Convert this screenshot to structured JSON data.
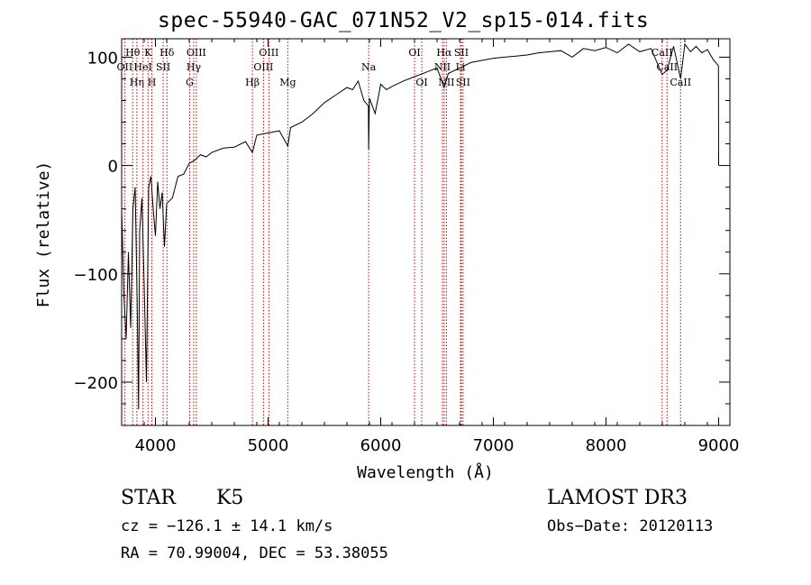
{
  "chart_data": {
    "type": "line",
    "title": "spec-55940-GAC_071N52_V2_sp15-014.fits",
    "xlabel": "Wavelength (Å)",
    "ylabel": "Flux (relative)",
    "xlim": [
      3700,
      9100
    ],
    "ylim": [
      -240,
      117
    ],
    "x_ticks": [
      4000,
      5000,
      6000,
      7000,
      8000,
      9000
    ],
    "y_ticks": [
      -200,
      -100,
      0,
      100
    ],
    "x_tick_labels": [
      "4000",
      "5000",
      "6000",
      "7000",
      "8000",
      "9000"
    ],
    "y_tick_labels": [
      "−200",
      "−100",
      "0",
      "100"
    ],
    "line_color": "#000000",
    "marker_color": "#cc0000",
    "series": [
      {
        "name": "flux",
        "x": [
          3700,
          3720,
          3740,
          3760,
          3780,
          3800,
          3820,
          3840,
          3850,
          3860,
          3880,
          3900,
          3920,
          3940,
          3960,
          3980,
          4000,
          4020,
          4040,
          4060,
          4080,
          4100,
          4150,
          4200,
          4250,
          4300,
          4350,
          4400,
          4450,
          4500,
          4600,
          4700,
          4800,
          4861,
          4900,
          5000,
          5100,
          5175,
          5200,
          5300,
          5400,
          5500,
          5600,
          5700,
          5750,
          5800,
          5850,
          5890,
          5893,
          5900,
          5950,
          6000,
          6050,
          6100,
          6200,
          6300,
          6400,
          6500,
          6563,
          6600,
          6700,
          6800,
          6900,
          7000,
          7100,
          7200,
          7300,
          7400,
          7500,
          7600,
          7700,
          7800,
          7900,
          8000,
          8100,
          8200,
          8300,
          8400,
          8498,
          8542,
          8600,
          8662,
          8700,
          8750,
          8800,
          8850,
          8900,
          8950,
          8998,
          9000
        ],
        "values": [
          -40,
          -120,
          -160,
          -80,
          -150,
          -40,
          -20,
          -140,
          -225,
          -60,
          -30,
          -110,
          -200,
          -20,
          -10,
          -40,
          -65,
          -15,
          -40,
          -25,
          -75,
          -35,
          -30,
          -10,
          -8,
          2,
          5,
          10,
          8,
          12,
          16,
          17,
          22,
          12,
          28,
          30,
          32,
          18,
          35,
          40,
          48,
          58,
          65,
          72,
          70,
          78,
          60,
          55,
          15,
          62,
          48,
          75,
          70,
          73,
          78,
          82,
          86,
          90,
          72,
          85,
          90,
          95,
          97,
          99,
          100,
          101,
          102,
          104,
          105,
          106,
          100,
          108,
          106,
          109,
          104,
          112,
          105,
          108,
          84,
          88,
          110,
          80,
          112,
          105,
          110,
          104,
          107,
          98,
          92,
          0
        ]
      }
    ],
    "line_markers": [
      {
        "name": "OII",
        "wavelength": 3727,
        "row": 2
      },
      {
        "name": "Hθ",
        "wavelength": 3798,
        "row": 1
      },
      {
        "name": "Hη",
        "wavelength": 3835,
        "row": 3
      },
      {
        "name": "HeI",
        "wavelength": 3889,
        "row": 2
      },
      {
        "name": "K",
        "wavelength": 3934,
        "row": 1
      },
      {
        "name": "H",
        "wavelength": 3968,
        "row": 3
      },
      {
        "name": "SII",
        "wavelength": 4069,
        "row": 2
      },
      {
        "name": "Hδ",
        "wavelength": 4102,
        "row": 1
      },
      {
        "name": "G",
        "wavelength": 4304,
        "row": 3
      },
      {
        "name": "Hγ",
        "wavelength": 4340,
        "row": 2
      },
      {
        "name": "OIII",
        "wavelength": 4363,
        "row": 1
      },
      {
        "name": "Hβ",
        "wavelength": 4861,
        "row": 3
      },
      {
        "name": "OIII",
        "wavelength": 4959,
        "row": 2
      },
      {
        "name": "OIII",
        "wavelength": 5007,
        "row": 1
      },
      {
        "name": "Mg",
        "wavelength": 5175,
        "row": 3
      },
      {
        "name": "Na",
        "wavelength": 5893,
        "row": 2
      },
      {
        "name": "OI",
        "wavelength": 6300,
        "row": 1
      },
      {
        "name": "OI",
        "wavelength": 6364,
        "row": 3
      },
      {
        "name": "NII",
        "wavelength": 6548,
        "row": 2
      },
      {
        "name": "Hα",
        "wavelength": 6563,
        "row": 1
      },
      {
        "name": "NII",
        "wavelength": 6583,
        "row": 3
      },
      {
        "name": "SII",
        "wavelength": 6716,
        "row": 1
      },
      {
        "name": "Li",
        "wavelength": 6708,
        "row": 2
      },
      {
        "name": "SII",
        "wavelength": 6731,
        "row": 3
      },
      {
        "name": "CaII",
        "wavelength": 8498,
        "row": 1
      },
      {
        "name": "CaII",
        "wavelength": 8542,
        "row": 2
      },
      {
        "name": "CaII",
        "wavelength": 8662,
        "row": 3
      }
    ]
  },
  "info": {
    "object_class": "STAR",
    "subclass": "K5",
    "survey": "LAMOST DR3",
    "cz": "cz = −126.1 ± 14.1 km/s",
    "obs_date": "Obs−Date: 20120113",
    "coords": "RA =  70.99004, DEC =  53.38055"
  }
}
